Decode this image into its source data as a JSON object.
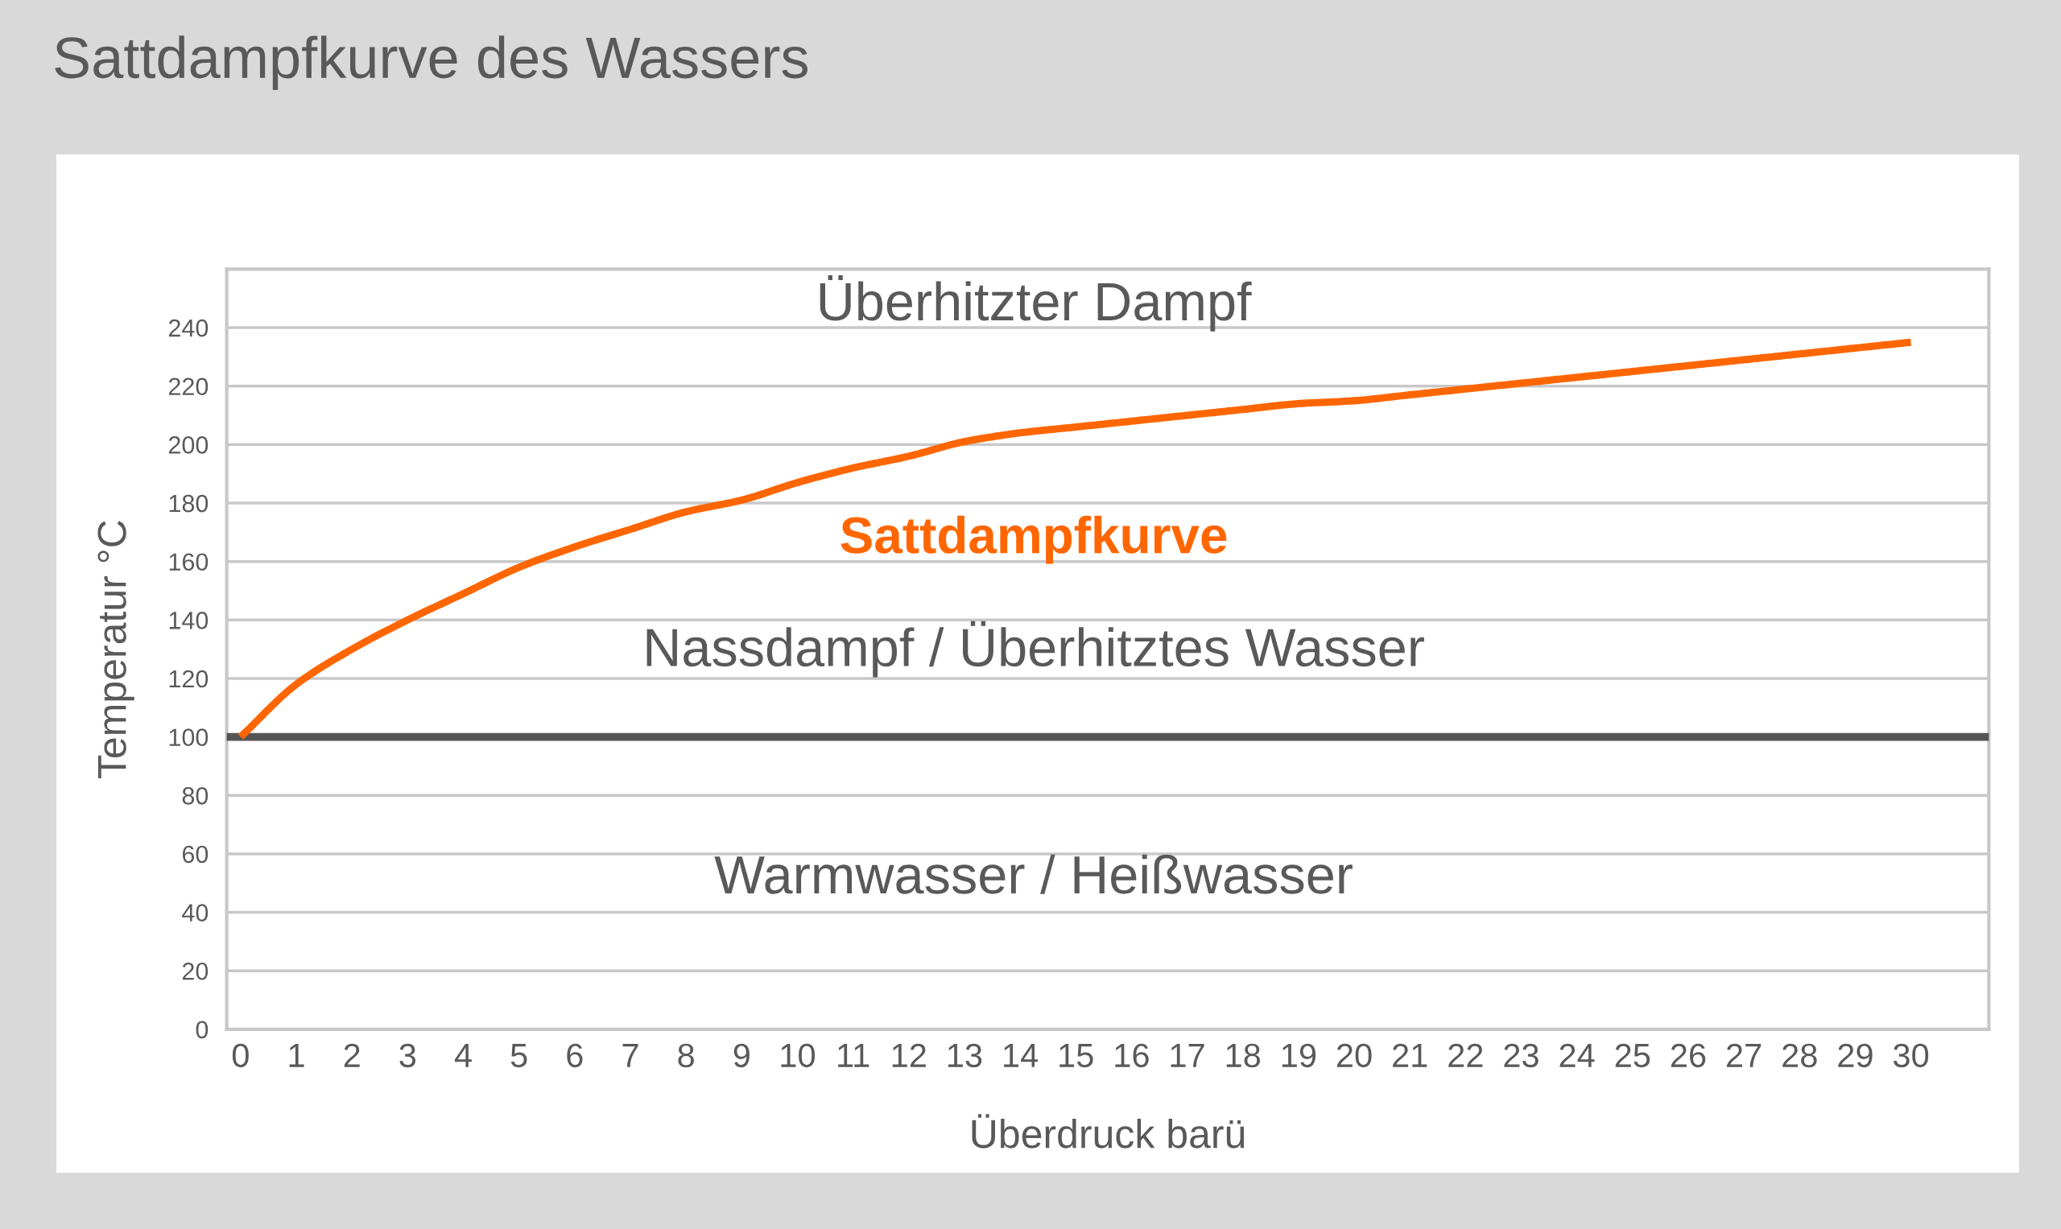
{
  "chart_data": {
    "type": "line",
    "title": "Sattdampfkurve des Wassers",
    "xlabel": "Überdruck barü",
    "ylabel": "Temperatur °C",
    "categories": [
      "0",
      "1",
      "2",
      "3",
      "4",
      "5",
      "6",
      "7",
      "8",
      "9",
      "10",
      "11",
      "12",
      "13",
      "14",
      "15",
      "16",
      "17",
      "18",
      "19",
      "20",
      "21",
      "22",
      "23",
      "24",
      "25",
      "26",
      "27",
      "28",
      "29",
      "30"
    ],
    "series": [
      {
        "name": "Sattdampfkurve",
        "color": "#ff6600",
        "values": [
          100,
          118,
          130,
          140,
          149,
          158,
          165,
          171,
          177,
          181,
          187,
          192,
          196,
          201,
          204,
          206,
          208,
          210,
          212,
          214,
          215,
          217,
          219,
          221,
          223,
          225,
          227,
          229,
          231,
          233,
          235
        ]
      }
    ],
    "ylim": [
      0,
      260
    ],
    "yticks": [
      0,
      20,
      40,
      60,
      80,
      100,
      120,
      140,
      160,
      180,
      200,
      220,
      240
    ],
    "grid": "y",
    "legend": false,
    "marker": "none",
    "line_style": "solid",
    "ref_lines": [
      {
        "axis": "y",
        "value": 100,
        "color": "#555555"
      }
    ],
    "annotations": [
      "Überhitzter Dampf",
      "Nassdampf / Überhitztes Wasser",
      "Warmwasser / Heißwasser"
    ]
  }
}
